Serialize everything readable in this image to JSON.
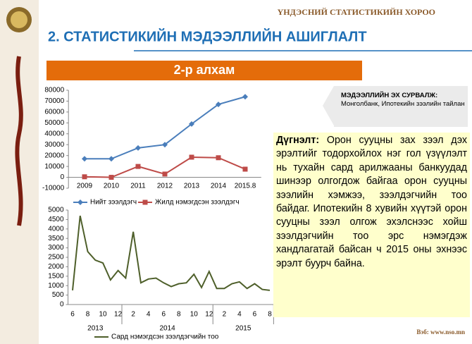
{
  "header": {
    "org": "ҮНДЭСНИЙ СТАТИСТИКИЙН ХОРОО",
    "title": "2.   СТАТИСТИКИЙН МЭДЭЭЛЛИЙН АШИГЛАЛТ",
    "step": "2-р алхам"
  },
  "source": {
    "label": "МЭДЭЭЛЛИЙН ЭХ СУРВАЛЖ:",
    "text": "Монголбанк, Ипотекийн зээлийн тайлан"
  },
  "conclusion": {
    "label": "Дүгнэлт:",
    "text": "Орон сууцны зах зээл дэх эрэлтийг тодорхойлох нэг гол үзүүлэлт нь тухайн сард арилжааны банкуудад шинээр олгогдож байгаа орон сууцны зээлийн хэмжээ, зээлдэгчийн тоо байдаг. Ипотекийн 8 хувийн хүүтэй орон сууцны зээл олгож эхэлснээс хойш зээлдэгчийн тоо эрс нэмэгдэж хандлагатай байсан ч 2015 оны эхнээс эрэлт буурч байна."
  },
  "footer": {
    "web": "Вэб: www.nso.mn"
  },
  "chart_data": [
    {
      "type": "line",
      "categories": [
        "2009",
        "2010",
        "2011",
        "2012",
        "2013",
        "2014",
        "2015.8"
      ],
      "series": [
        {
          "name": "Нийт зээлдэгч",
          "color": "#4a7ebb",
          "marker": "diamond",
          "values": [
            17000,
            17000,
            27000,
            30000,
            49000,
            67000,
            74000
          ]
        },
        {
          "name": "Жилд нэмэгдсэн зээлдэгч",
          "color": "#be4b48",
          "marker": "square",
          "values": [
            500,
            0,
            10000,
            3000,
            18500,
            18000,
            7500
          ]
        }
      ],
      "ylim": [
        -10000,
        80000
      ],
      "yticks": [
        -10000,
        0,
        10000,
        20000,
        30000,
        40000,
        50000,
        60000,
        70000,
        80000
      ],
      "grid": false
    },
    {
      "type": "line",
      "categories": [
        "6",
        null,
        "8",
        null,
        "10",
        null,
        "12",
        null,
        "2",
        null,
        "4",
        null,
        "6",
        null,
        "8",
        null,
        "10",
        null,
        "12",
        null,
        "2",
        null,
        "4",
        null,
        "6",
        null,
        "8"
      ],
      "groups": [
        {
          "label": "2013",
          "span": [
            0,
            6
          ]
        },
        {
          "label": "2014",
          "span": [
            7,
            18
          ]
        },
        {
          "label": "2015",
          "span": [
            19,
            26
          ]
        }
      ],
      "series": [
        {
          "name": "Сард нэмэгдсэн зээлдэгчийн тоо",
          "color": "#4e5f2a",
          "values": [
            750,
            4700,
            2800,
            2350,
            2200,
            1300,
            1800,
            1400,
            3850,
            1150,
            1350,
            1400,
            1150,
            950,
            1100,
            1150,
            1600,
            900,
            1750,
            850,
            850,
            1100,
            1200,
            850,
            1100,
            800,
            750
          ]
        }
      ],
      "ylim": [
        0,
        5000
      ],
      "yticks": [
        0,
        500,
        1000,
        1500,
        2000,
        2500,
        3000,
        3500,
        4000,
        4500,
        5000
      ],
      "grid": false
    }
  ]
}
